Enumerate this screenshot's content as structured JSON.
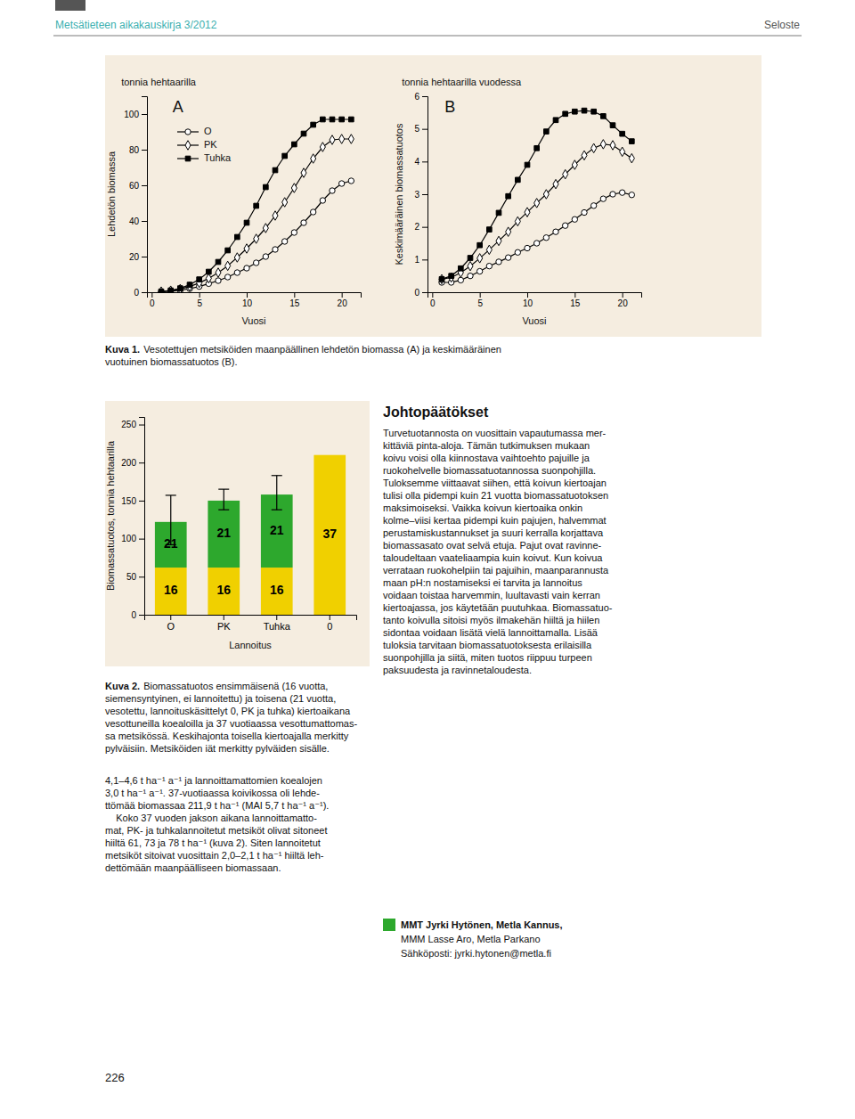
{
  "chart_data": [
    {
      "type": "line",
      "title": "tonnia hehtaarilla",
      "annotations": [
        "A"
      ],
      "xlabel": "Vuosi",
      "ylabel": "Lehdetön biomassa",
      "xlim": [
        -0.5,
        22
      ],
      "ylim": [
        0,
        110
      ],
      "xticks": [
        0,
        5,
        10,
        15,
        20
      ],
      "yticks": [
        0,
        20,
        40,
        60,
        80,
        100
      ],
      "legend": "upper left",
      "x": [
        1,
        2,
        3,
        4,
        5,
        6,
        7,
        8,
        9,
        10,
        11,
        12,
        13,
        14,
        15,
        16,
        17,
        18,
        19,
        20,
        21
      ],
      "series": [
        {
          "name": "O",
          "color": "#000000",
          "marker": "open-circle",
          "values": [
            0.3,
            0.6,
            1.1,
            2.0,
            3.2,
            4.8,
            6.5,
            8.5,
            11.0,
            13.5,
            16.5,
            20.0,
            24.0,
            28.5,
            33.5,
            39.0,
            45.0,
            51.5,
            57.0,
            61.0,
            62.5
          ]
        },
        {
          "name": "PK",
          "color": "#000000",
          "marker": "open-diamond",
          "values": [
            0.4,
            0.9,
            1.8,
            3.2,
            5.2,
            7.8,
            11.0,
            14.8,
            19.5,
            24.5,
            30.0,
            36.0,
            43.0,
            50.5,
            58.5,
            67.0,
            75.0,
            81.5,
            85.5,
            86.0,
            86.0
          ]
        },
        {
          "name": "Tuhka",
          "color": "#000000",
          "marker": "square",
          "values": [
            0.4,
            1.0,
            2.2,
            4.2,
            7.2,
            11.5,
            17.0,
            23.5,
            31.0,
            39.0,
            48.5,
            59.0,
            68.5,
            76.5,
            83.0,
            89.0,
            94.0,
            97.0,
            97.0,
            97.0,
            97.0
          ]
        }
      ]
    },
    {
      "type": "line",
      "title": "tonnia hehtaarilla vuodessa",
      "annotations": [
        "B"
      ],
      "xlabel": "Vuosi",
      "ylabel": "Keskimääräinen biomassatuotos",
      "xlim": [
        -0.5,
        22
      ],
      "ylim": [
        0,
        6
      ],
      "xticks": [
        0,
        5,
        10,
        15,
        20
      ],
      "yticks": [
        0,
        1,
        2,
        3,
        4,
        5,
        6
      ],
      "x": [
        1,
        2,
        3,
        4,
        5,
        6,
        7,
        8,
        9,
        10,
        11,
        12,
        13,
        14,
        15,
        16,
        17,
        18,
        19,
        20,
        21
      ],
      "series": [
        {
          "color": "#000000",
          "marker": "open-circle",
          "values": [
            0.3,
            0.3,
            0.37,
            0.5,
            0.64,
            0.8,
            0.93,
            1.06,
            1.22,
            1.35,
            1.5,
            1.67,
            1.85,
            2.04,
            2.23,
            2.44,
            2.65,
            2.86,
            3.0,
            3.05,
            2.98
          ]
        },
        {
          "color": "#000000",
          "marker": "open-diamond",
          "values": [
            0.4,
            0.45,
            0.6,
            0.8,
            1.04,
            1.3,
            1.57,
            1.85,
            2.17,
            2.45,
            2.73,
            3.0,
            3.31,
            3.61,
            3.9,
            4.19,
            4.41,
            4.53,
            4.5,
            4.3,
            4.1
          ]
        },
        {
          "color": "#000000",
          "marker": "square",
          "values": [
            0.4,
            0.5,
            0.73,
            1.05,
            1.44,
            1.92,
            2.43,
            2.94,
            3.44,
            3.9,
            4.41,
            4.92,
            5.27,
            5.46,
            5.53,
            5.56,
            5.53,
            5.39,
            5.11,
            4.85,
            4.62
          ]
        }
      ]
    },
    {
      "type": "bar",
      "stacked": true,
      "xlabel": "Lannoitus",
      "ylabel": "Biomassatuotos, tonnia hehtaarilla",
      "categories": [
        "O",
        "PK",
        "Tuhka",
        "0"
      ],
      "ylim": [
        0,
        260
      ],
      "yticks": [
        0,
        50,
        100,
        150,
        200,
        250
      ],
      "series": [
        {
          "color": "#f0d000",
          "values": [
            62,
            62,
            62,
            210
          ],
          "ages": [
            16,
            16,
            16,
            37
          ]
        },
        {
          "color": "#2da82d",
          "values": [
            60,
            88,
            96,
            null
          ],
          "ages": [
            21,
            21,
            21,
            null
          ],
          "error_plus": [
            35,
            15,
            25,
            null
          ],
          "error_minus": [
            30,
            12,
            20,
            null
          ]
        }
      ]
    }
  ],
  "page": {
    "header": "Metsätieteen aikakauskirja 3/2012",
    "header_right": "Seloste",
    "caption_1": {
      "label": "Kuva 1.",
      "lines": [
        "Vesotettujen metsiköiden maanpäällinen lehdetön biomassa (A) ja keskimääräinen",
        "vuotuinen biomassatuotos (B)."
      ]
    },
    "caption_2": {
      "label": "Kuva 2.",
      "lines": [
        "Biomassatuotos ensimmäisenä (16 vuotta,",
        "siemensyntyinen, ei lannoitettu) ja toisena (21 vuotta,",
        "vesotettu, lannoituskäsittelyt 0, PK ja tuhka) kiertoaikana",
        "vesottuneilla koealoilla ja 37 vuotiaassa vesottumattomas-",
        "sa metsikössä. Keskihajonta toisella kiertoajalla merkitty",
        "pylväisiin. Metsiköiden iät merkitty pylväiden sisälle."
      ]
    },
    "conclusions_title": "Johtopäätökset",
    "conclusions_lines": [
      "Turvetuotannosta on vuosittain vapautumassa mer-",
      "kittäviä pinta-aloja. Tämän tutkimuksen mukaan",
      "koivu voisi olla kiinnostava vaihtoehto pajuille ja",
      "ruokohelvelle biomassatuotannossa suonpohjilla.",
      "Tuloksemme viittaavat siihen, että koivun kiertoajan",
      "tulisi olla pidempi kuin 21 vuotta biomassatuotoksen",
      "maksimoiseksi. Vaikka koivun kiertoaika onkin",
      "kolme–viisi kertaa pidempi kuin pajujen, halvemmat",
      "perustamiskustannukset ja suuri kerralla korjattava",
      "biomassasato ovat selvä etuja. Pajut ovat ravinne-",
      "taloudeltaan vaateliaampia kuin koivut. Kun koivua",
      "verrataan ruokohelpiin tai pajuihin, maanparannusta",
      "maan pH:n nostamiseksi ei tarvita ja lannoitus",
      "voidaan toistaa harvemmin, luultavasti vain kerran",
      "kiertoajassa, jos käytetään puutuhkaa. Biomassatuo-",
      "tanto koivulla sitoisi myös ilmakehän hiiltä ja hiilen",
      "sidontaa voidaan lisätä vielä lannoittamalla. Lisää",
      "tuloksia tarvitaan biomassatuotoksesta erilaisilla",
      "suonpohjilla ja siitä, miten tuotos riippuu turpeen",
      "paksuudesta ja ravinnetaloudesta."
    ],
    "paragraph_lines": [
      "4,1–4,6 t ha⁻¹ a⁻¹ ja lannoittamattomien koealojen",
      "3,0 t ha⁻¹ a⁻¹. 37-vuotiaassa koivikossa oli lehde-",
      "ttömää biomassaa 211,9 t ha⁻¹ (MAI 5,7 t ha⁻¹ a⁻¹).",
      "    Koko 37 vuoden jakson aikana lannoittamatto-",
      "mat, PK- ja tuhkalannoitetut metsiköt olivat sitoneet",
      "hiiltä 61, 73 ja 78 t ha⁻¹ (kuva 2). Siten lannoitetut",
      "metsiköt sitoivat vuosittain 2,0–2,1 t ha⁻¹ hiiltä leh-",
      "dettömään maanpäälliseen biomassaan."
    ],
    "contact_lines": [
      "MMT Jyrki Hytönen, Metla Kannus,",
      "MMM Lasse Aro, Metla Parkano",
      "Sähköposti: jyrki.hytonen@metla.fi"
    ],
    "page_number": "226"
  }
}
